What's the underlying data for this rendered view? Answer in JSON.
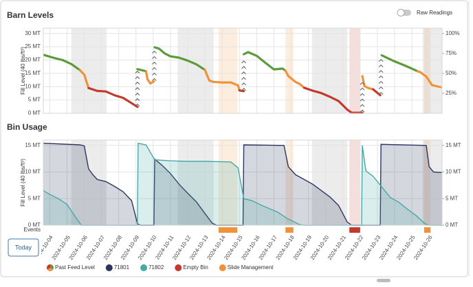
{
  "toggle_label": "Raw Readings",
  "today_button": "Today",
  "chart_data": [
    {
      "type": "line",
      "title": "Barn Levels",
      "ylabel": "Fill Level (40 lbs/ft³)",
      "xlim": [
        "2024-10-03T15:00",
        "2024-10-26T18:00"
      ],
      "ylim": [
        0,
        32
      ],
      "yticks": [
        {
          "value": 0,
          "label": "0 MT"
        },
        {
          "value": 5,
          "label": "5 MT"
        },
        {
          "value": 10,
          "label": "10 MT"
        },
        {
          "value": 15,
          "label": "15 MT"
        },
        {
          "value": 20,
          "label": "20 MT"
        },
        {
          "value": 25,
          "label": "25 MT"
        },
        {
          "value": 30,
          "label": "30 MT"
        }
      ],
      "y2lim": [
        0,
        106.7
      ],
      "y2ticks": [
        {
          "value": 25,
          "label": "25%"
        },
        {
          "value": 50,
          "label": "50%"
        },
        {
          "value": 75,
          "label": "75%"
        },
        {
          "value": 100,
          "label": "100%"
        }
      ],
      "grid": true,
      "shaded": [
        [
          "2024-10-05T06:00",
          "2024-10-07T07:00"
        ],
        [
          "2024-10-11T10:00",
          "2024-10-13T12:00"
        ],
        [
          "2024-10-19T05:00",
          "2024-10-21T06:00"
        ],
        [
          "2024-10-25T15:00",
          "2024-10-26T18:00"
        ]
      ],
      "series": [
        {
          "name": "Past Feed Level",
          "runs": [
            {
              "pieces": [
                {
                  "color": "#5c9a3a",
                  "x": [
                    "2024-10-03T15:00",
                    "2024-10-04T06:00",
                    "2024-10-04T18:00",
                    "2024-10-05T06:00",
                    "2024-10-05T18:00"
                  ],
                  "values": [
                    22.0,
                    20.8,
                    20.0,
                    18.5,
                    16.2
                  ]
                },
                {
                  "color": "#f0923a",
                  "x": [
                    "2024-10-05T18:00",
                    "2024-10-06T00:00",
                    "2024-10-06T06:00"
                  ],
                  "values": [
                    16.2,
                    14.5,
                    9.5
                  ]
                },
                {
                  "color": "#c23a2e",
                  "x": [
                    "2024-10-06T06:00",
                    "2024-10-06T18:00",
                    "2024-10-07T06:00",
                    "2024-10-07T18:00",
                    "2024-10-08T06:00",
                    "2024-10-08T18:00",
                    "2024-10-09T02:00"
                  ],
                  "values": [
                    9.5,
                    8.4,
                    8.2,
                    6.8,
                    5.8,
                    3.8,
                    2.4
                  ]
                }
              ]
            },
            {
              "pieces": [
                {
                  "color": "#5c9a3a",
                  "x": [
                    "2024-10-09T02:00",
                    "2024-10-09T08:00",
                    "2024-10-09T14:00"
                  ],
                  "values": [
                    16.6,
                    16.2,
                    15.8
                  ]
                },
                {
                  "color": "#f0923a",
                  "x": [
                    "2024-10-09T14:00",
                    "2024-10-09T16:00",
                    "2024-10-09T20:00",
                    "2024-10-10T01:00"
                  ],
                  "values": [
                    15.8,
                    12.8,
                    11.2,
                    12.0
                  ]
                }
              ]
            },
            {
              "pieces": [
                {
                  "color": "#5c9a3a",
                  "x": [
                    "2024-10-10T02:00",
                    "2024-10-10T08:00",
                    "2024-10-10T16:00",
                    "2024-10-11T00:00",
                    "2024-10-11T12:00",
                    "2024-10-12T00:00",
                    "2024-10-12T12:00",
                    "2024-10-13T00:00"
                  ],
                  "values": [
                    24.8,
                    24.3,
                    22.5,
                    21.4,
                    20.9,
                    19.8,
                    18.4,
                    16.3
                  ]
                },
                {
                  "color": "#f0923a",
                  "x": [
                    "2024-10-13T00:00",
                    "2024-10-13T06:00",
                    "2024-10-13T12:00",
                    "2024-10-14T00:00",
                    "2024-10-14T12:00",
                    "2024-10-14T22:00",
                    "2024-10-15T00:00"
                  ],
                  "values": [
                    16.3,
                    12.3,
                    11.8,
                    11.6,
                    11.6,
                    10.5,
                    8.6
                  ]
                },
                {
                  "color": "#c23a2e",
                  "x": [
                    "2024-10-15T00:00",
                    "2024-10-15T06:00"
                  ],
                  "values": [
                    8.6,
                    8.3
                  ]
                }
              ]
            },
            {
              "pieces": [
                {
                  "color": "#5c9a3a",
                  "x": [
                    "2024-10-15T06:00",
                    "2024-10-15T12:00",
                    "2024-10-16T00:00",
                    "2024-10-16T12:00",
                    "2024-10-17T00:00",
                    "2024-10-17T12:00",
                    "2024-10-17T16:00"
                  ],
                  "values": [
                    22.2,
                    23.0,
                    21.6,
                    19.0,
                    16.5,
                    16.8,
                    16.0
                  ]
                },
                {
                  "color": "#f0923a",
                  "x": [
                    "2024-10-17T16:00",
                    "2024-10-17T20:00",
                    "2024-10-18T06:00",
                    "2024-10-18T12:00",
                    "2024-10-18T18:00"
                  ],
                  "values": [
                    16.0,
                    14.0,
                    11.8,
                    11.0,
                    9.6
                  ]
                },
                {
                  "color": "#c23a2e",
                  "x": [
                    "2024-10-18T18:00",
                    "2024-10-19T06:00",
                    "2024-10-19T18:00",
                    "2024-10-20T06:00",
                    "2024-10-20T18:00",
                    "2024-10-21T06:00",
                    "2024-10-21T12:00",
                    "2024-10-22T00:00",
                    "2024-10-22T03:00"
                  ],
                  "values": [
                    9.6,
                    8.5,
                    7.6,
                    6.2,
                    4.6,
                    1.4,
                    0.2,
                    0.2,
                    0.2
                  ]
                }
              ]
            },
            {
              "pieces": [
                {
                  "color": "#f0923a",
                  "x": [
                    "2024-10-22T03:00",
                    "2024-10-22T06:00",
                    "2024-10-22T12:00",
                    "2024-10-22T18:00"
                  ],
                  "values": [
                    14.0,
                    10.2,
                    9.4,
                    9.0
                  ]
                },
                {
                  "color": "#c23a2e",
                  "x": [
                    "2024-10-22T18:00",
                    "2024-10-23T04:00"
                  ],
                  "values": [
                    9.0,
                    6.8
                  ]
                }
              ]
            },
            {
              "pieces": [
                {
                  "color": "#5c9a3a",
                  "x": [
                    "2024-10-23T06:00",
                    "2024-10-23T12:00",
                    "2024-10-24T00:00",
                    "2024-10-24T12:00",
                    "2024-10-25T00:00",
                    "2024-10-25T08:00"
                  ],
                  "values": [
                    21.8,
                    21.0,
                    19.5,
                    18.2,
                    16.8,
                    15.8
                  ]
                },
                {
                  "color": "#f0923a",
                  "x": [
                    "2024-10-25T08:00",
                    "2024-10-25T12:00",
                    "2024-10-25T20:00",
                    "2024-10-26T04:00",
                    "2024-10-26T16:00"
                  ],
                  "values": [
                    15.8,
                    15.4,
                    13.8,
                    10.6,
                    9.8
                  ]
                }
              ]
            }
          ]
        }
      ]
    },
    {
      "type": "area",
      "title": "Bin Usage",
      "ylabel": "Fill Level (40 lbs/ft³)",
      "xlim": [
        "2024-10-03T15:00",
        "2024-10-26T18:00"
      ],
      "xticks": [
        "2024-10-04",
        "2024-10-05",
        "2024-10-06",
        "2024-10-07",
        "2024-10-08",
        "2024-10-09",
        "2024-10-10",
        "2024-10-11",
        "2024-10-12",
        "2024-10-13",
        "2024-10-14",
        "2024-10-15",
        "2024-10-16",
        "2024-10-17",
        "2024-10-18",
        "2024-10-19",
        "2024-10-20",
        "2024-10-21",
        "2024-10-22",
        "2024-10-23",
        "2024-10-24",
        "2024-10-25",
        "2024-10-26"
      ],
      "ylim": [
        0,
        16
      ],
      "yticks": [
        {
          "value": 0,
          "label": "0 MT"
        },
        {
          "value": 5,
          "label": "5 MT"
        },
        {
          "value": 10,
          "label": "10 MT"
        },
        {
          "value": 15,
          "label": "15 MT"
        }
      ],
      "y2lim": [
        0,
        16
      ],
      "y2ticks": [
        {
          "value": 0,
          "label": "0 MT"
        },
        {
          "value": 5,
          "label": "5 MT"
        },
        {
          "value": 10,
          "label": "10 MT"
        },
        {
          "value": 15,
          "label": "15 MT"
        }
      ],
      "grid": true,
      "series": [
        {
          "name": "71801",
          "color": "#2c3560",
          "x": [
            "2024-10-03T15:00",
            "2024-10-05T18:00",
            "2024-10-06T00:00",
            "2024-10-06T06:00",
            "2024-10-06T12:00",
            "2024-10-06T18:00",
            "2024-10-07T06:00",
            "2024-10-07T18:00",
            "2024-10-08T06:00",
            "2024-10-08T18:00",
            "2024-10-09T02:00",
            "2024-10-09T06:00",
            "2024-10-10T01:00",
            "2024-10-10T02:00",
            "2024-10-10T12:00",
            "2024-10-11T00:00",
            "2024-10-11T12:00",
            "2024-10-12T00:00",
            "2024-10-12T12:00",
            "2024-10-13T00:00",
            "2024-10-13T10:00",
            "2024-10-13T16:00",
            "2024-10-15T05:00",
            "2024-10-15T06:00",
            "2024-10-17T14:00",
            "2024-10-17T20:00",
            "2024-10-18T06:00",
            "2024-10-18T18:00",
            "2024-10-19T06:00",
            "2024-10-19T18:00",
            "2024-10-20T06:00",
            "2024-10-20T18:00",
            "2024-10-21T06:00",
            "2024-10-21T12:00",
            "2024-10-23T04:00",
            "2024-10-23T05:00",
            "2024-10-25T20:00",
            "2024-10-26T00:00",
            "2024-10-26T06:00",
            "2024-10-26T18:00"
          ],
          "values": [
            15.4,
            15.1,
            14.9,
            10.6,
            9.5,
            8.6,
            8.2,
            7.3,
            6.3,
            4.6,
            0.3,
            0,
            0,
            12.4,
            11.3,
            9.7,
            7.7,
            6.0,
            4.4,
            2.2,
            0.4,
            0,
            0,
            15.1,
            15.0,
            11.0,
            9.5,
            8.6,
            7.7,
            6.5,
            5.3,
            3.7,
            0.6,
            0,
            0,
            15.2,
            15.0,
            11.0,
            10.0,
            9.9
          ]
        },
        {
          "name": "71802",
          "color": "#45aaa5",
          "x": [
            "2024-10-03T15:00",
            "2024-10-04T00:00",
            "2024-10-04T12:00",
            "2024-10-05T00:00",
            "2024-10-05T12:00",
            "2024-10-05T20:00",
            "2024-10-09T02:00",
            "2024-10-09T03:00",
            "2024-10-09T14:00",
            "2024-10-10T02:00",
            "2024-10-11T00:00",
            "2024-10-12T00:00",
            "2024-10-13T00:00",
            "2024-10-14T12:00",
            "2024-10-14T22:00",
            "2024-10-15T06:00",
            "2024-10-15T18:00",
            "2024-10-16T06:00",
            "2024-10-16T18:00",
            "2024-10-17T06:00",
            "2024-10-17T18:00",
            "2024-10-18T12:00",
            "2024-10-18T18:00",
            "2024-10-22T02:00",
            "2024-10-22T03:00",
            "2024-10-22T08:00",
            "2024-10-22T18:00",
            "2024-10-23T06:00",
            "2024-10-23T18:00",
            "2024-10-24T06:00",
            "2024-10-24T18:00",
            "2024-10-25T06:00",
            "2024-10-25T18:00",
            "2024-10-26T00:00",
            "2024-10-26T18:00"
          ],
          "values": [
            6.5,
            5.8,
            5.0,
            3.9,
            1.5,
            0,
            0,
            15.4,
            15.1,
            12.3,
            12.1,
            12.0,
            12.0,
            11.9,
            10.8,
            5.0,
            4.6,
            3.8,
            3.1,
            2.4,
            1.3,
            0.1,
            0,
            0,
            15.0,
            10.2,
            9.2,
            7.2,
            5.2,
            4.3,
            3.0,
            1.8,
            0.3,
            0,
            0
          ]
        }
      ],
      "events_label": "Events",
      "event_types": [
        {
          "name": "Empty Bin",
          "color": "#c23a2e"
        },
        {
          "name": "Slide Management",
          "color": "#f0923a"
        }
      ],
      "events": [
        {
          "kind": "Slide Management",
          "start": "2024-10-13T19:00",
          "end": "2024-10-14T21:00"
        },
        {
          "kind": "Slide Management",
          "start": "2024-10-17T16:00",
          "end": "2024-10-18T03:00"
        },
        {
          "kind": "Empty Bin",
          "start": "2024-10-21T09:00",
          "end": "2024-10-22T00:00"
        },
        {
          "kind": "Slide Management",
          "start": "2024-10-25T17:00",
          "end": "2024-10-26T02:00"
        }
      ]
    }
  ]
}
